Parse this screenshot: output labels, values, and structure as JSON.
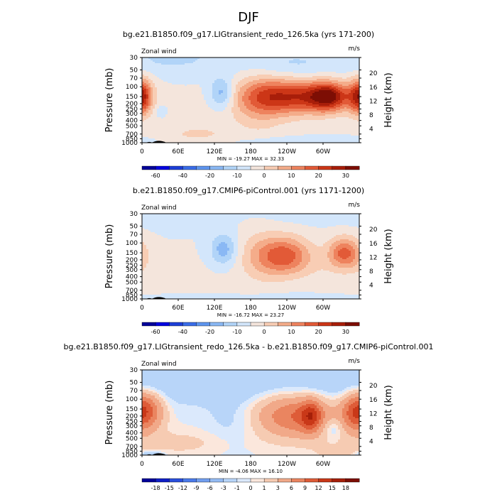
{
  "figure": {
    "title": "DJF"
  },
  "colors": {
    "panel_palette": [
      "#000099",
      "#0000e0",
      "#1d3fd7",
      "#3a6de8",
      "#5e95ee",
      "#8ab8f4",
      "#b1d4f8",
      "#d3e6fb",
      "#f4e5dc",
      "#f8cdb4",
      "#f4ac8a",
      "#ee835e",
      "#e25a37",
      "#cc3617",
      "#a81e0a",
      "#7d0e04"
    ],
    "diff_palette": [
      "#000099",
      "#0f1fc6",
      "#2a4fdc",
      "#4a7aea",
      "#719eef",
      "#95bcf4",
      "#b8d5f9",
      "#dbe9fc",
      "#fbe7dc",
      "#f6cbb2",
      "#f1a989",
      "#ea8560",
      "#de5c38",
      "#c93818",
      "#a51f09",
      "#7d0e04"
    ],
    "topography": "#000000"
  },
  "chart_data": [
    {
      "type": "heatmap",
      "title": "bg.e21.B1850.f09_g17.LIGtransient_redo_126.5ka (yrs 171-200)",
      "field_label": "Zonal wind",
      "units": "m/s",
      "ylabel": "Pressure (mb)",
      "ylabel_right": "Height (km)",
      "x_ticks": [
        "0",
        "60E",
        "120E",
        "180",
        "120W",
        "60W"
      ],
      "x_tick_lons": [
        0,
        60,
        120,
        180,
        240,
        300
      ],
      "xlim": [
        0,
        360
      ],
      "y_ticks": [
        "30",
        "50",
        "70",
        "100",
        "150",
        "200",
        "250",
        "300",
        "400",
        "500",
        "700",
        "850",
        "1000"
      ],
      "y_tick_values": [
        30,
        50,
        70,
        100,
        150,
        200,
        250,
        300,
        400,
        500,
        700,
        850,
        1000
      ],
      "ylim": [
        1000,
        30
      ],
      "y_scale": "log",
      "right_ticks": [
        "4",
        "8",
        "12",
        "16",
        "20"
      ],
      "stats": "MIN = -19.27   MAX =  32.33",
      "colorbar_labels": [
        "-60",
        "-40",
        "-20",
        "-10",
        "0",
        "10",
        "20",
        "30"
      ],
      "grid": false,
      "features": [
        {
          "lon": 252,
          "p": 150,
          "amp": 28,
          "slon": 55,
          "sp": 0.5
        },
        {
          "lon": 310,
          "p": 150,
          "amp": 26,
          "slon": 22,
          "sp": 0.4
        },
        {
          "lon": 195,
          "p": 170,
          "amp": 10,
          "slon": 30,
          "sp": 0.8
        },
        {
          "lon": 0,
          "p": 150,
          "amp": 15,
          "slon": 10,
          "sp": 0.5
        },
        {
          "lon": 360,
          "p": 150,
          "amp": 14,
          "slon": 14,
          "sp": 0.5
        },
        {
          "lon": 132,
          "p": 130,
          "amp": -14,
          "slon": 14,
          "sp": 0.45
        },
        {
          "lon": 55,
          "p": 30,
          "amp": -6,
          "slon": 55,
          "sp": 0.45
        },
        {
          "lon": 245,
          "p": 40,
          "amp": -6,
          "slon": 65,
          "sp": 0.45
        },
        {
          "lon": 90,
          "p": 700,
          "amp": 5,
          "slon": 30,
          "sp": 0.18
        },
        {
          "lon": 30,
          "p": 270,
          "amp": -4,
          "slon": 8,
          "sp": 0.2
        },
        {
          "lon": 130,
          "p": 500,
          "amp": 2,
          "slon": 80,
          "sp": 0.8
        },
        {
          "lon": 230,
          "p": 950,
          "amp": -4,
          "slon": 60,
          "sp": 0.15
        },
        {
          "lon": 330,
          "p": 1000,
          "amp": -4,
          "slon": 30,
          "sp": 0.15
        }
      ],
      "topography": [
        {
          "lon": 12,
          "p": 945,
          "w": 5
        },
        {
          "lon": 28,
          "p": 880,
          "w": 12
        },
        {
          "lon": 34,
          "p": 920,
          "w": 6
        },
        {
          "lon": 170,
          "p": 990,
          "w": 4
        },
        {
          "lon": 245,
          "p": 985,
          "w": 5
        }
      ],
      "levels": [
        -60,
        -40,
        -30,
        -20,
        -15,
        -10,
        -5,
        0,
        5,
        10,
        15,
        20,
        25,
        30,
        35
      ]
    },
    {
      "type": "heatmap",
      "title": "b.e21.B1850.f09_g17.CMIP6-piControl.001 (yrs 1171-1200)",
      "field_label": "Zonal wind",
      "units": "m/s",
      "ylabel": "Pressure (mb)",
      "ylabel_right": "Height (km)",
      "x_ticks": [
        "0",
        "60E",
        "120E",
        "180",
        "120W",
        "60W"
      ],
      "x_tick_lons": [
        0,
        60,
        120,
        180,
        240,
        300
      ],
      "xlim": [
        0,
        360
      ],
      "y_ticks": [
        "30",
        "50",
        "70",
        "100",
        "150",
        "200",
        "250",
        "300",
        "400",
        "500",
        "700",
        "850",
        "1000"
      ],
      "y_tick_values": [
        30,
        50,
        70,
        100,
        150,
        200,
        250,
        300,
        400,
        500,
        700,
        850,
        1000
      ],
      "ylim": [
        1000,
        30
      ],
      "y_scale": "log",
      "right_ticks": [
        "4",
        "8",
        "12",
        "16",
        "20"
      ],
      "stats": "MIN = -16.72   MAX =  23.27",
      "colorbar_labels": [
        "-60",
        "-40",
        "-20",
        "-10",
        "0",
        "10",
        "20",
        "30"
      ],
      "grid": false,
      "features": [
        {
          "lon": 238,
          "p": 170,
          "amp": 22,
          "slon": 28,
          "sp": 0.55
        },
        {
          "lon": 335,
          "p": 150,
          "amp": 21,
          "slon": 18,
          "sp": 0.45
        },
        {
          "lon": 195,
          "p": 170,
          "amp": 9,
          "slon": 25,
          "sp": 0.7
        },
        {
          "lon": 300,
          "p": 250,
          "amp": 3,
          "slon": 30,
          "sp": 0.6
        },
        {
          "lon": 0,
          "p": 220,
          "amp": 3,
          "slon": 15,
          "sp": 0.5
        },
        {
          "lon": 135,
          "p": 130,
          "amp": -13,
          "slon": 15,
          "sp": 0.45
        },
        {
          "lon": 285,
          "p": 30,
          "amp": -3,
          "slon": 60,
          "sp": 0.3
        },
        {
          "lon": 60,
          "p": 35,
          "amp": -3,
          "slon": 50,
          "sp": 0.3
        },
        {
          "lon": 130,
          "p": 600,
          "amp": 1,
          "slon": 80,
          "sp": 0.8
        },
        {
          "lon": 90,
          "p": 1000,
          "amp": -3,
          "slon": 40,
          "sp": 0.15
        },
        {
          "lon": 230,
          "p": 950,
          "amp": -3,
          "slon": 60,
          "sp": 0.15
        }
      ],
      "topography": [
        {
          "lon": 12,
          "p": 945,
          "w": 5
        },
        {
          "lon": 28,
          "p": 880,
          "w": 12
        },
        {
          "lon": 34,
          "p": 920,
          "w": 6
        },
        {
          "lon": 170,
          "p": 990,
          "w": 4
        },
        {
          "lon": 245,
          "p": 985,
          "w": 5
        }
      ],
      "levels": [
        -60,
        -40,
        -30,
        -20,
        -15,
        -10,
        -5,
        0,
        5,
        10,
        15,
        20,
        25,
        30,
        35
      ]
    },
    {
      "type": "heatmap",
      "title": "bg.e21.B1850.f09_g17.LIGtransient_redo_126.5ka - b.e21.B1850.f09_g17.CMIP6-piControl.001",
      "field_label": "Zonal wind",
      "units": "m/s",
      "ylabel": "Pressure (mb)",
      "ylabel_right": "Height (km)",
      "x_ticks": [
        "0",
        "60E",
        "120E",
        "180",
        "120W",
        "60W"
      ],
      "x_tick_lons": [
        0,
        60,
        120,
        180,
        240,
        300
      ],
      "xlim": [
        0,
        360
      ],
      "y_ticks": [
        "30",
        "50",
        "70",
        "100",
        "150",
        "200",
        "250",
        "300",
        "400",
        "500",
        "700",
        "850",
        "1000"
      ],
      "y_tick_values": [
        30,
        50,
        70,
        100,
        150,
        200,
        250,
        300,
        400,
        500,
        700,
        850,
        1000
      ],
      "ylim": [
        1000,
        30
      ],
      "y_scale": "log",
      "right_ticks": [
        "4",
        "8",
        "12",
        "16",
        "20"
      ],
      "stats": "MIN = -4.06   MAX =  16.10",
      "colorbar_labels": [
        "-18",
        "-15",
        "-12",
        "-9",
        "-6",
        "-3",
        "-1",
        "0",
        "1",
        "3",
        "6",
        "9",
        "12",
        "15",
        "18"
      ],
      "grid": false,
      "features": [
        {
          "lon": 255,
          "p": 200,
          "amp": 9,
          "slon": 45,
          "sp": 0.6
        },
        {
          "lon": 280,
          "p": 200,
          "amp": 8,
          "slon": 12,
          "sp": 0.45
        },
        {
          "lon": 10,
          "p": 160,
          "amp": 9,
          "slon": 18,
          "sp": 0.55
        },
        {
          "lon": 350,
          "p": 170,
          "amp": 7,
          "slon": 15,
          "sp": 0.55
        },
        {
          "lon": 315,
          "p": 330,
          "amp": -3,
          "slon": 12,
          "sp": 0.3
        },
        {
          "lon": 60,
          "p": 50,
          "amp": -2,
          "slon": 100,
          "sp": 0.7
        },
        {
          "lon": 260,
          "p": 50,
          "amp": -2,
          "slon": 120,
          "sp": 0.5
        },
        {
          "lon": 150,
          "p": 230,
          "amp": -1.5,
          "slon": 30,
          "sp": 0.9
        },
        {
          "lon": 60,
          "p": 600,
          "amp": 1.5,
          "slon": 70,
          "sp": 0.35
        },
        {
          "lon": 15,
          "p": 1000,
          "amp": -4,
          "slon": 15,
          "sp": 0.12
        },
        {
          "lon": 330,
          "p": 950,
          "amp": 1.5,
          "slon": 30,
          "sp": 0.2
        }
      ],
      "topography": [
        {
          "lon": 12,
          "p": 945,
          "w": 5
        },
        {
          "lon": 28,
          "p": 880,
          "w": 12
        },
        {
          "lon": 34,
          "p": 920,
          "w": 6
        },
        {
          "lon": 170,
          "p": 990,
          "w": 4
        },
        {
          "lon": 245,
          "p": 985,
          "w": 5
        }
      ],
      "levels": [
        -18,
        -15,
        -12,
        -9,
        -6,
        -3,
        -1,
        0,
        1,
        3,
        6,
        9,
        12,
        15,
        18
      ]
    }
  ]
}
